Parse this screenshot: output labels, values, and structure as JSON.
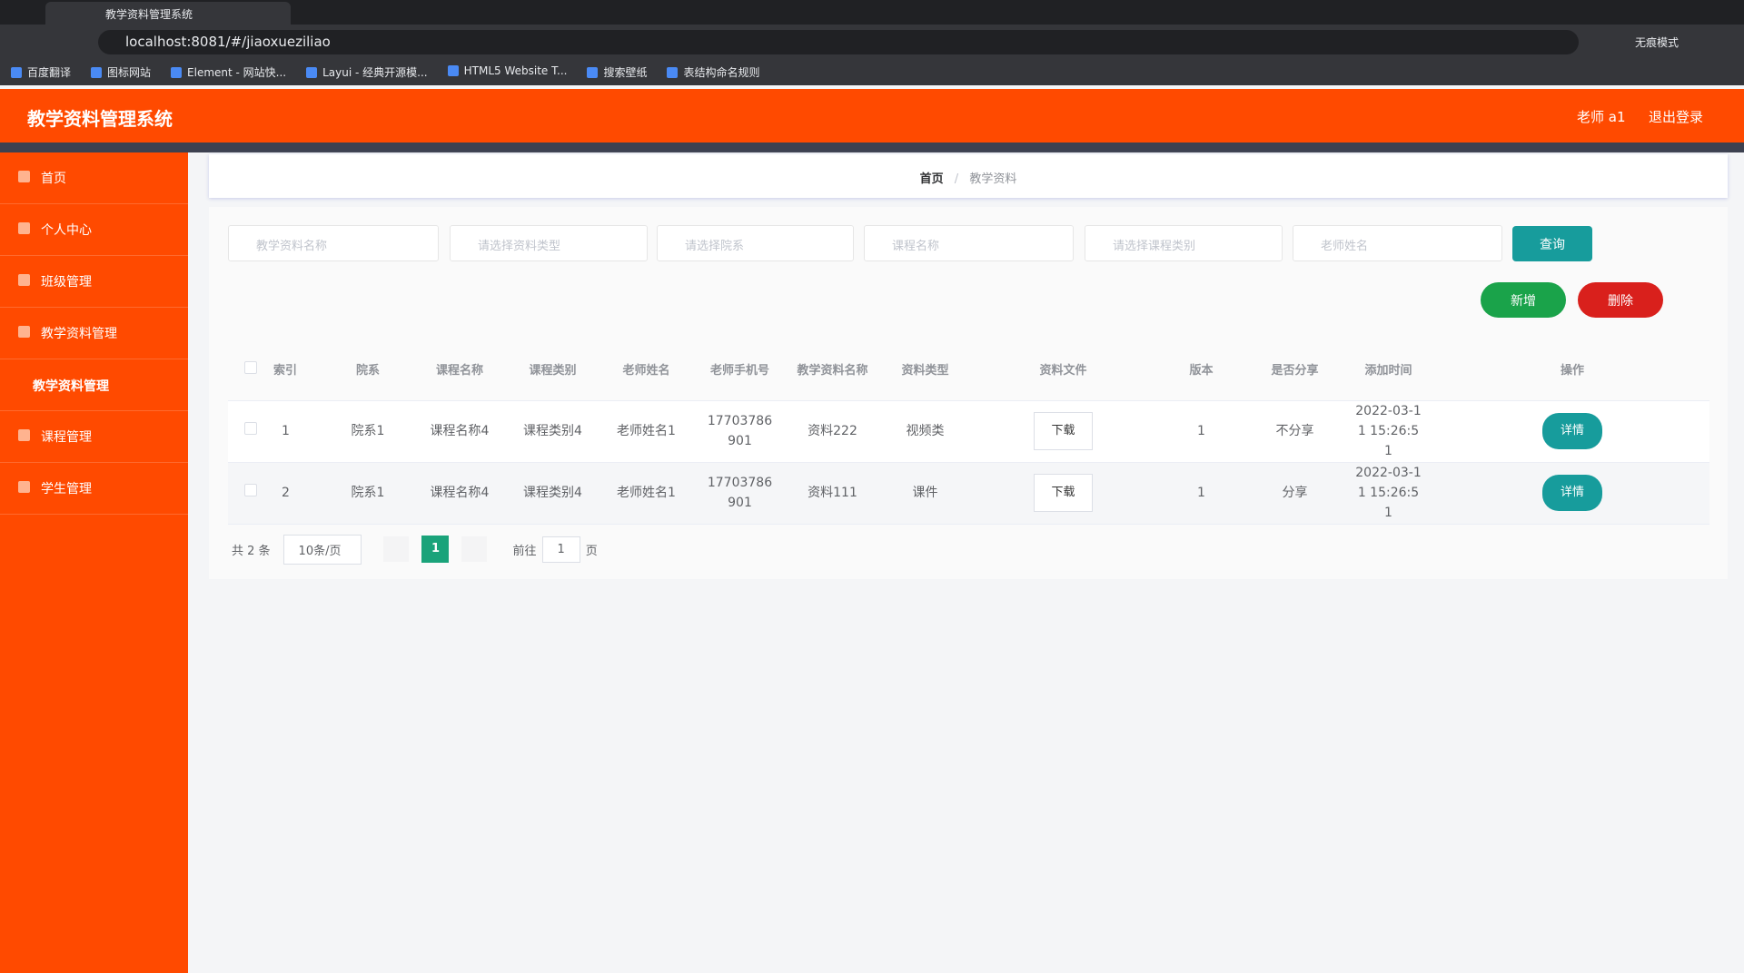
{
  "browser": {
    "tab_title": "教学资料管理系统",
    "url": "localhost:8081/#/jiaoxueziliao",
    "incognito": "无痕模式",
    "bookmarks": [
      "百度翻译",
      "图标网站",
      "Element - 网站快...",
      "Layui - 经典开源模...",
      "HTML5 Website T...",
      "搜索壁纸",
      "表结构命名规则"
    ]
  },
  "header": {
    "title": "教学资料管理系统",
    "user": "老师 a1",
    "logout": "退出登录"
  },
  "sidebar": {
    "items": [
      "首页",
      "个人中心",
      "班级管理",
      "教学资料管理",
      "课程管理",
      "学生管理"
    ],
    "sub_item": "教学资料管理"
  },
  "breadcrumb": {
    "home": "首页",
    "current": "教学资料"
  },
  "search": {
    "placeholders": [
      "教学资料名称",
      "请选择资料类型",
      "请选择院系",
      "课程名称",
      "请选择课程类别",
      "老师姓名"
    ],
    "query": "查询"
  },
  "actions": {
    "add": "新增",
    "delete": "删除"
  },
  "table": {
    "columns": [
      "索引",
      "院系",
      "课程名称",
      "课程类别",
      "老师姓名",
      "老师手机号",
      "教学资料名称",
      "资料类型",
      "资料文件",
      "版本",
      "是否分享",
      "添加时间",
      "操作"
    ],
    "rows": [
      [
        "1",
        "院系1",
        "课程名称4",
        "课程类别4",
        "老师姓名1",
        "17703786901",
        "资料222",
        "视频类",
        "下载",
        "1",
        "不分享",
        "2022-03-11 15:26:51",
        "详情"
      ],
      [
        "2",
        "院系1",
        "课程名称4",
        "课程类别4",
        "老师姓名1",
        "17703786901",
        "资料111",
        "课件",
        "下载",
        "1",
        "分享",
        "2022-03-11 15:26:51",
        "详情"
      ]
    ]
  },
  "pagination": {
    "total": "共 2 条",
    "page_size": "10条/页",
    "current": "1",
    "goto": "前往",
    "goto_value": "1",
    "page_unit": "页"
  }
}
